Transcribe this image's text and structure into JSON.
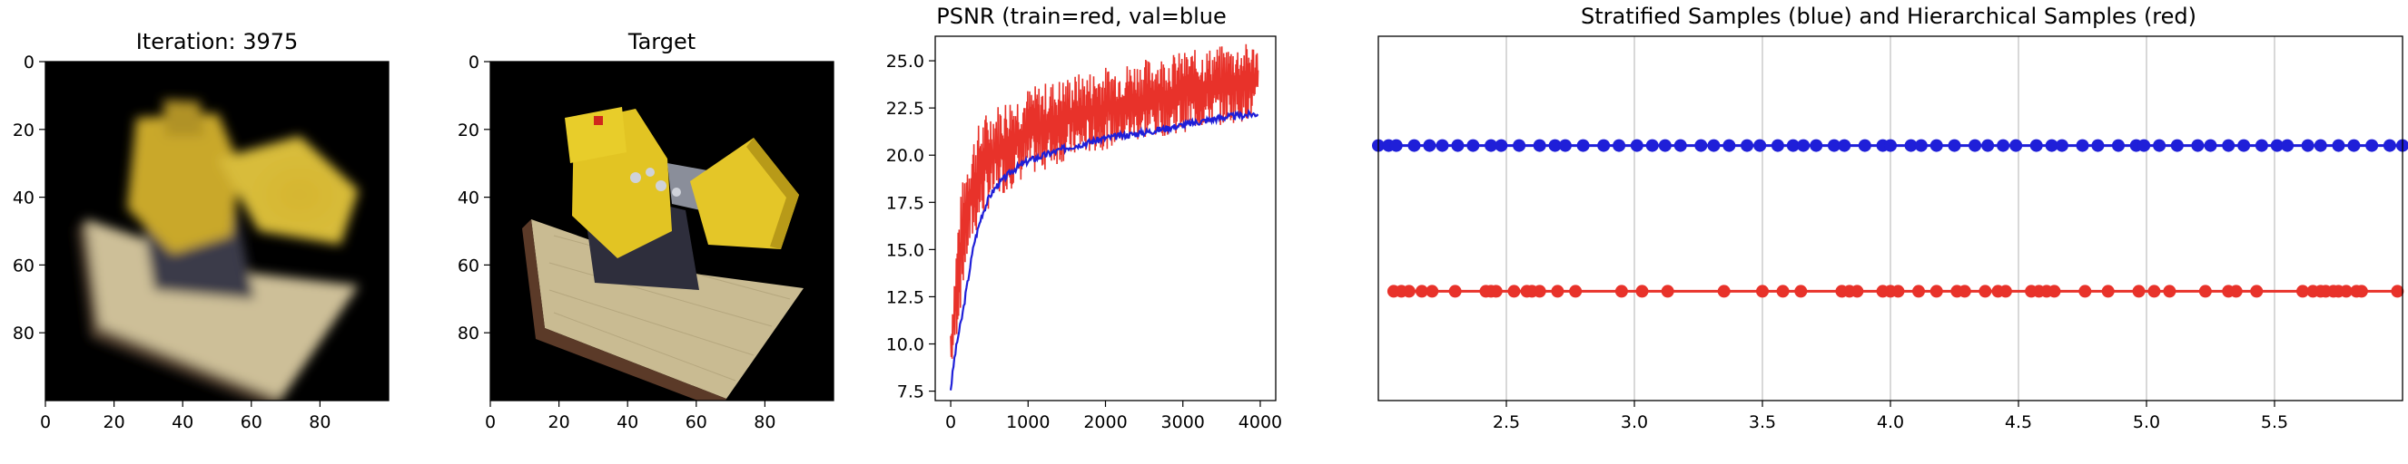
{
  "chart_data": [
    {
      "type": "image",
      "title": "Iteration: 3975",
      "xlim": [
        0,
        100
      ],
      "ylim": [
        100,
        0
      ],
      "xticks": [
        0,
        20,
        40,
        60,
        80
      ],
      "yticks": [
        0,
        20,
        40,
        60,
        80
      ],
      "content": "blurry rendered reconstruction of a yellow toy bulldozer on a wooden base, black background",
      "colors": {
        "background": "#000000",
        "body": "#d4b52c",
        "base": "#cdbf98",
        "shadow": "#3a3a48"
      }
    },
    {
      "type": "image",
      "title": "Target",
      "xlim": [
        0,
        100
      ],
      "ylim": [
        100,
        0
      ],
      "xticks": [
        0,
        20,
        40,
        60,
        80
      ],
      "yticks": [
        0,
        20,
        40,
        60,
        80
      ],
      "content": "ground-truth image of a yellow toy bulldozer on a wooden base, black background",
      "colors": {
        "background": "#000000",
        "body": "#e2c423",
        "base": "#c9bb92",
        "shadow": "#2e2e3c"
      }
    },
    {
      "type": "line",
      "title": "PSNR (train=red, val=blue",
      "xlim": [
        -200,
        4200
      ],
      "ylim": [
        7,
        26.3
      ],
      "xticks": [
        0,
        1000,
        2000,
        3000,
        4000
      ],
      "yticks": [
        7.5,
        10.0,
        12.5,
        15.0,
        17.5,
        20.0,
        22.5,
        25.0
      ],
      "grid": false,
      "series": [
        {
          "color": "#e8322a",
          "style": "noisy band",
          "x": [
            0,
            50,
            100,
            200,
            300,
            400,
            500,
            700,
            1000,
            1500,
            2000,
            2500,
            3000,
            3500,
            3975
          ],
          "lower": [
            8.5,
            9.5,
            11.0,
            14.0,
            15.5,
            16.5,
            17.2,
            18.0,
            18.8,
            19.7,
            20.3,
            20.8,
            21.2,
            21.6,
            21.9
          ],
          "upper": [
            11.0,
            14.0,
            17.0,
            20.0,
            21.2,
            22.0,
            22.5,
            23.0,
            23.6,
            24.2,
            24.7,
            25.1,
            25.5,
            25.8,
            26.0
          ]
        },
        {
          "color": "#1f1fd8",
          "x": [
            0,
            50,
            100,
            150,
            200,
            300,
            400,
            500,
            600,
            800,
            1000,
            1500,
            2000,
            2500,
            3000,
            3500,
            3975
          ],
          "values": [
            7.6,
            9.3,
            10.5,
            11.5,
            12.8,
            15.3,
            16.8,
            17.8,
            18.4,
            19.2,
            19.7,
            20.4,
            20.9,
            21.2,
            21.6,
            22.0,
            22.2
          ]
        }
      ]
    },
    {
      "type": "scatter",
      "title": "Stratified  Samples (blue) and Hierarchical Samples (red)",
      "xlim": [
        2.0,
        6.0
      ],
      "ylim": [
        0,
        1
      ],
      "xticks": [
        2.5,
        3.0,
        3.5,
        4.0,
        4.5,
        5.0,
        5.5
      ],
      "xtick_labels": [
        "2.5",
        "3.0",
        "3.5",
        "4.0",
        "4.5",
        "5.0",
        "5.5"
      ],
      "grid": true,
      "series": [
        {
          "color": "#1f1fd8",
          "y": 0.7,
          "connected": true,
          "x": [
            2.0,
            2.04,
            2.07,
            2.14,
            2.2,
            2.25,
            2.31,
            2.37,
            2.44,
            2.48,
            2.55,
            2.63,
            2.69,
            2.73,
            2.8,
            2.88,
            2.94,
            3.01,
            3.07,
            3.12,
            3.18,
            3.26,
            3.31,
            3.37,
            3.44,
            3.49,
            3.56,
            3.62,
            3.66,
            3.71,
            3.78,
            3.82,
            3.9,
            3.97,
            4.0,
            4.08,
            4.12,
            4.18,
            4.25,
            4.33,
            4.38,
            4.44,
            4.49,
            4.57,
            4.63,
            4.67,
            4.75,
            4.81,
            4.89,
            4.96,
            4.99,
            5.05,
            5.12,
            5.2,
            5.25,
            5.32,
            5.38,
            5.45,
            5.51,
            5.55,
            5.63,
            5.68,
            5.75,
            5.81,
            5.88,
            5.95,
            6.0
          ]
        },
        {
          "color": "#e8322a",
          "y": 0.3,
          "connected": true,
          "x": [
            2.06,
            2.09,
            2.12,
            2.17,
            2.21,
            2.3,
            2.42,
            2.44,
            2.46,
            2.53,
            2.58,
            2.6,
            2.63,
            2.7,
            2.77,
            2.95,
            3.03,
            3.13,
            3.35,
            3.5,
            3.58,
            3.65,
            3.81,
            3.84,
            3.87,
            3.97,
            4.0,
            4.03,
            4.11,
            4.18,
            4.26,
            4.29,
            4.37,
            4.42,
            4.45,
            4.55,
            4.58,
            4.61,
            4.64,
            4.76,
            4.85,
            4.97,
            5.03,
            5.09,
            5.23,
            5.32,
            5.35,
            5.43,
            5.61,
            5.65,
            5.68,
            5.7,
            5.73,
            5.75,
            5.78,
            5.82,
            5.84,
            5.98
          ]
        }
      ]
    }
  ]
}
